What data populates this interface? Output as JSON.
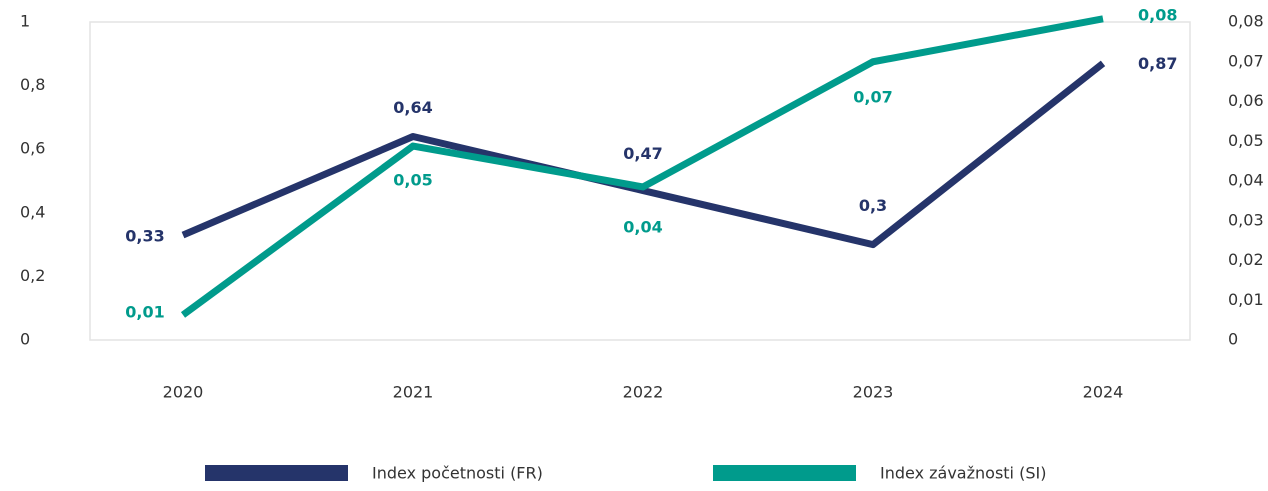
{
  "chart_data": {
    "type": "line",
    "categories": [
      "2020",
      "2021",
      "2022",
      "2023",
      "2024"
    ],
    "series": [
      {
        "name": "Index početnosti (FR)",
        "color": "#25346a",
        "values": [
          0.33,
          0.64,
          0.47,
          0.3,
          0.87
        ],
        "value_labels": [
          "0,33",
          "0,64",
          "0,47",
          "0,3",
          "0,87"
        ]
      },
      {
        "name": "Index závažnosti (SI)",
        "color": "#009b8c",
        "axis": "y2",
        "values": [
          0.0063,
          0.0488,
          0.0385,
          0.07,
          0.0808
        ],
        "value_labels": [
          "0,01",
          "0,05",
          "0,04",
          "0,07",
          "0,08"
        ]
      }
    ],
    "ylim": [
      0,
      1
    ],
    "yticks": [
      0,
      {
        "value": 0.2,
        "label": "0,2"
      },
      {
        "value": 0.4,
        "label": "0,4"
      },
      {
        "value": 0.6,
        "label": "0,6"
      },
      {
        "value": 0.8,
        "label": "0,8"
      },
      1
    ],
    "y2lim": [
      0,
      0.08
    ],
    "y2ticks": [
      0,
      {
        "value": 0.01,
        "label": "0,01"
      },
      {
        "value": 0.02,
        "label": "0,02"
      },
      {
        "value": 0.03,
        "label": "0,03"
      },
      {
        "value": 0.04,
        "label": "0,04"
      },
      {
        "value": 0.05,
        "label": "0,05"
      },
      {
        "value": 0.06,
        "label": "0,06"
      },
      {
        "value": 0.07,
        "label": "0,07"
      },
      {
        "value": 0.08,
        "label": "0,08"
      }
    ],
    "legend": "bottom"
  }
}
